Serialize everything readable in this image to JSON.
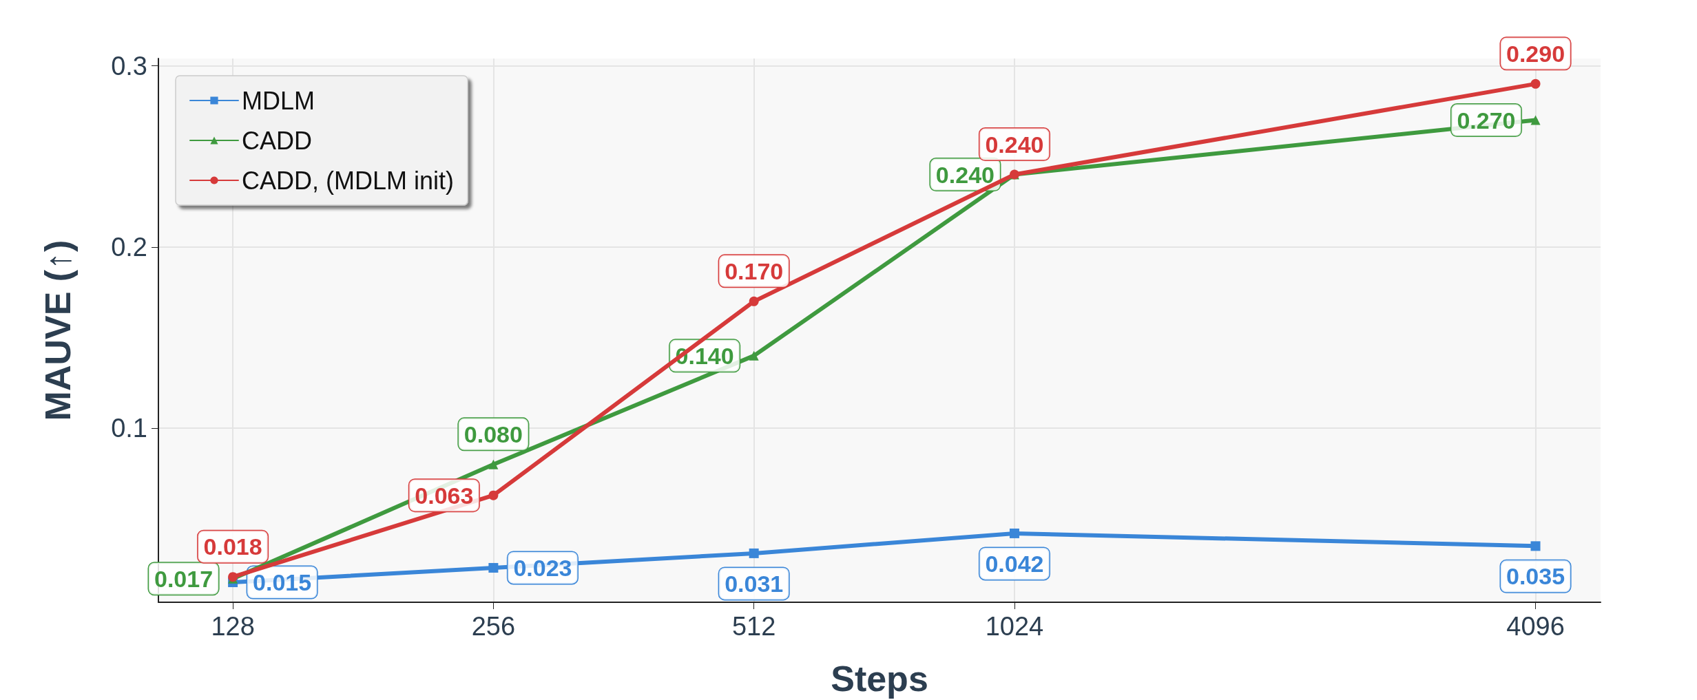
{
  "chart_data": {
    "type": "line",
    "xlabel": "Steps",
    "ylabel": "MAUVE (↑)",
    "x": [
      128,
      256,
      512,
      1024,
      4096
    ],
    "log": "x",
    "xlim": [
      105,
      4870
    ],
    "xticks": [
      128,
      256,
      512,
      1024,
      4096
    ],
    "ylim": [
      0.004,
      0.304
    ],
    "yticks": [
      0.1,
      0.2,
      0.3
    ],
    "grid": true,
    "legend": "top left",
    "line_style": "solid",
    "series": [
      {
        "name": "MDLM",
        "color": "#3a86d8",
        "marker": "square",
        "values": [
          0.015,
          0.023,
          0.031,
          0.042,
          0.035
        ],
        "value_labels": [
          "0.015",
          "0.023",
          "0.031",
          "0.042",
          "0.035"
        ]
      },
      {
        "name": "CADD",
        "color": "#3f9a3f",
        "marker": "triangle",
        "values": [
          0.017,
          0.08,
          0.14,
          0.24,
          0.27
        ],
        "value_labels": [
          "0.017",
          "0.080",
          "0.140",
          "0.240",
          "0.270"
        ]
      },
      {
        "name": "CADD, (MDLM init)",
        "color": "#d63a3a",
        "marker": "circle",
        "values": [
          0.018,
          0.063,
          0.17,
          0.24,
          0.29
        ],
        "value_labels": [
          "0.018",
          "0.063",
          "0.170",
          "0.240",
          "0.290"
        ]
      }
    ]
  }
}
